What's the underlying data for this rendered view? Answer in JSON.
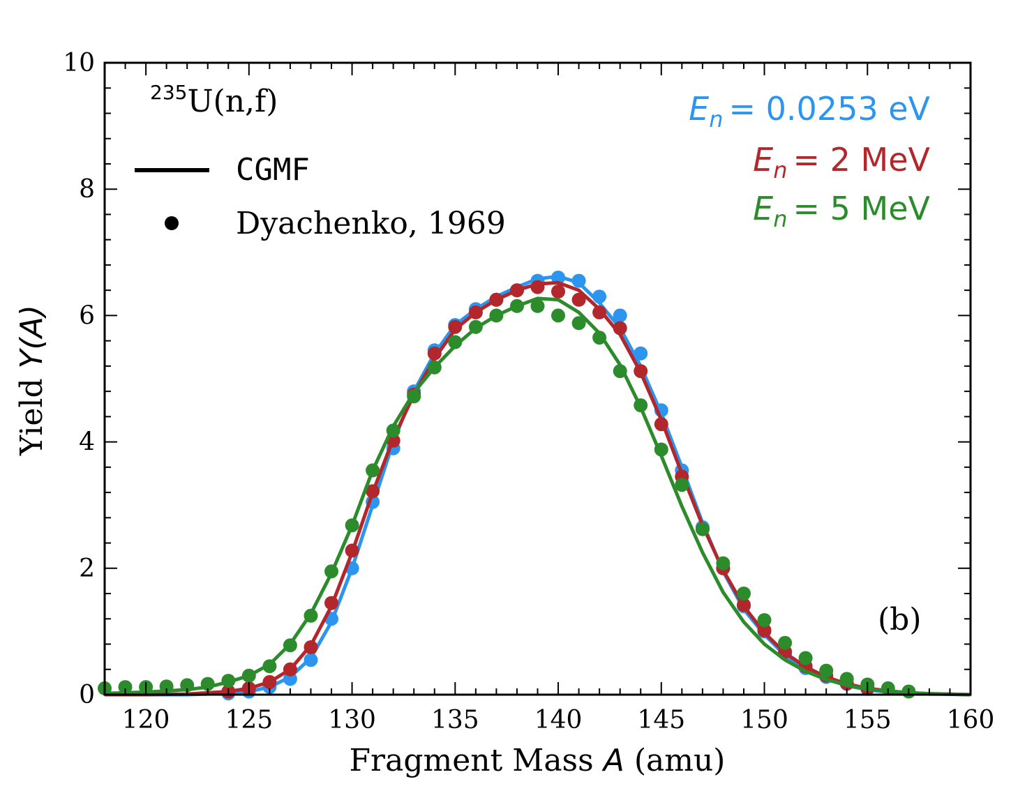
{
  "chart_data": {
    "type": "line",
    "xlabel": "Fragment Mass",
    "xlabel_var": "A",
    "xlabel_unit": "(amu)",
    "ylabel": "Yield",
    "ylabel_var": "Y(A)",
    "xlim": [
      118,
      160
    ],
    "ylim": [
      0,
      10
    ],
    "x_ticks": [
      120,
      125,
      130,
      135,
      140,
      145,
      150,
      155,
      160
    ],
    "y_ticks": [
      0,
      2,
      4,
      6,
      8,
      10
    ],
    "x_tick_labels": [
      "120",
      "125",
      "130",
      "135",
      "140",
      "145",
      "150",
      "155",
      "160"
    ],
    "y_tick_labels": [
      "0",
      "2",
      "4",
      "6",
      "8",
      "10"
    ],
    "reaction_sup": "235",
    "reaction": "U(n,f)",
    "panel_label": "(b)",
    "legend": {
      "placement": "top-left",
      "line_label": "CGMF",
      "marker_label": "Dyachenko, 1969"
    },
    "series": [
      {
        "label_var": "E",
        "label_sub": "n",
        "label_value": "= 0.0253 eV",
        "color": "#2b95ef",
        "curve_x": [
          118,
          120,
          122,
          124,
          125,
          126,
          127,
          128,
          129,
          130,
          131,
          132,
          133,
          134,
          135,
          136,
          137,
          138,
          139,
          140,
          141,
          142,
          143,
          144,
          145,
          146,
          147,
          148,
          149,
          150,
          151,
          152,
          153,
          154,
          155,
          156,
          157,
          158,
          159,
          160
        ],
        "curve_y": [
          0.0,
          0.0,
          0.0,
          0.02,
          0.05,
          0.12,
          0.28,
          0.58,
          1.15,
          2.0,
          3.0,
          4.0,
          4.8,
          5.4,
          5.85,
          6.1,
          6.3,
          6.45,
          6.58,
          6.62,
          6.52,
          6.2,
          5.8,
          5.2,
          4.45,
          3.6,
          2.72,
          1.95,
          1.35,
          0.95,
          0.62,
          0.4,
          0.25,
          0.14,
          0.08,
          0.04,
          0.02,
          0.01,
          0.005,
          0.0
        ],
        "points_x": [
          124,
          125,
          126,
          127,
          128,
          129,
          130,
          131,
          132,
          133,
          134,
          135,
          136,
          137,
          138,
          139,
          140,
          141,
          142,
          143,
          144,
          145,
          146,
          147,
          148,
          149,
          150,
          151,
          152,
          153,
          154,
          155
        ],
        "points_y": [
          0.02,
          0.05,
          0.12,
          0.25,
          0.55,
          1.2,
          2.0,
          3.05,
          3.9,
          4.8,
          5.45,
          5.85,
          6.1,
          6.25,
          6.4,
          6.55,
          6.6,
          6.55,
          6.3,
          6.0,
          5.4,
          4.5,
          3.55,
          2.65,
          2.0,
          1.4,
          1.0,
          0.65,
          0.42,
          0.28,
          0.17,
          0.09
        ]
      },
      {
        "label_var": "E",
        "label_sub": "n",
        "label_value": "= 2 MeV",
        "color": "#b2272b",
        "curve_x": [
          118,
          120,
          122,
          124,
          125,
          126,
          127,
          128,
          129,
          130,
          131,
          132,
          133,
          134,
          135,
          136,
          137,
          138,
          139,
          140,
          141,
          142,
          143,
          144,
          145,
          146,
          147,
          148,
          149,
          150,
          151,
          152,
          153,
          154,
          155,
          156,
          157,
          158,
          159,
          160
        ],
        "curve_y": [
          0.0,
          0.0,
          0.01,
          0.05,
          0.1,
          0.2,
          0.4,
          0.78,
          1.4,
          2.25,
          3.2,
          4.05,
          4.75,
          5.32,
          5.78,
          6.05,
          6.25,
          6.4,
          6.5,
          6.52,
          6.4,
          6.1,
          5.7,
          5.1,
          4.35,
          3.5,
          2.68,
          1.97,
          1.4,
          0.98,
          0.66,
          0.44,
          0.28,
          0.17,
          0.1,
          0.06,
          0.03,
          0.015,
          0.008,
          0.0
        ],
        "points_x": [
          124,
          125,
          126,
          127,
          128,
          129,
          130,
          131,
          132,
          133,
          134,
          135,
          136,
          137,
          138,
          139,
          140,
          141,
          142,
          143,
          144,
          145,
          146,
          147,
          148,
          149,
          150,
          151,
          152,
          153,
          154,
          155
        ],
        "points_y": [
          0.05,
          0.1,
          0.2,
          0.4,
          0.75,
          1.45,
          2.28,
          3.22,
          4.02,
          4.75,
          5.4,
          5.82,
          6.05,
          6.25,
          6.4,
          6.45,
          6.38,
          6.25,
          6.05,
          5.8,
          5.12,
          4.28,
          3.45,
          2.62,
          2.0,
          1.42,
          1.02,
          0.68,
          0.45,
          0.3,
          0.18,
          0.1
        ]
      },
      {
        "label_var": "E",
        "label_sub": "n",
        "label_value": "= 5 MeV",
        "color": "#2c8c2c",
        "curve_x": [
          118,
          120,
          122,
          123,
          124,
          125,
          126,
          127,
          128,
          129,
          130,
          131,
          132,
          133,
          134,
          135,
          136,
          137,
          138,
          139,
          140,
          141,
          142,
          143,
          144,
          145,
          146,
          147,
          148,
          149,
          150,
          151,
          152,
          153,
          154,
          155,
          156,
          157,
          158,
          159,
          160
        ],
        "curve_y": [
          0.02,
          0.04,
          0.08,
          0.12,
          0.2,
          0.3,
          0.48,
          0.8,
          1.28,
          1.92,
          2.68,
          3.55,
          4.25,
          4.78,
          5.18,
          5.52,
          5.8,
          6.0,
          6.15,
          6.27,
          6.25,
          6.05,
          5.72,
          5.22,
          4.55,
          3.78,
          2.98,
          2.25,
          1.62,
          1.15,
          0.8,
          0.55,
          0.37,
          0.24,
          0.15,
          0.09,
          0.05,
          0.03,
          0.015,
          0.008,
          0.0
        ],
        "points_x": [
          118,
          119,
          120,
          121,
          122,
          123,
          124,
          125,
          126,
          127,
          128,
          129,
          130,
          131,
          132,
          133,
          134,
          135,
          136,
          137,
          138,
          139,
          140,
          141,
          142,
          143,
          144,
          145,
          146,
          147,
          148,
          149,
          150,
          151,
          152,
          153,
          154,
          155,
          156,
          157
        ],
        "points_y": [
          0.1,
          0.12,
          0.12,
          0.13,
          0.15,
          0.17,
          0.22,
          0.3,
          0.45,
          0.78,
          1.25,
          1.95,
          2.68,
          3.55,
          4.18,
          4.72,
          5.18,
          5.58,
          5.82,
          6.0,
          6.15,
          6.15,
          6.0,
          5.88,
          5.65,
          5.12,
          4.58,
          3.88,
          3.32,
          2.62,
          2.08,
          1.6,
          1.18,
          0.82,
          0.58,
          0.38,
          0.25,
          0.16,
          0.1,
          0.05
        ]
      }
    ]
  }
}
